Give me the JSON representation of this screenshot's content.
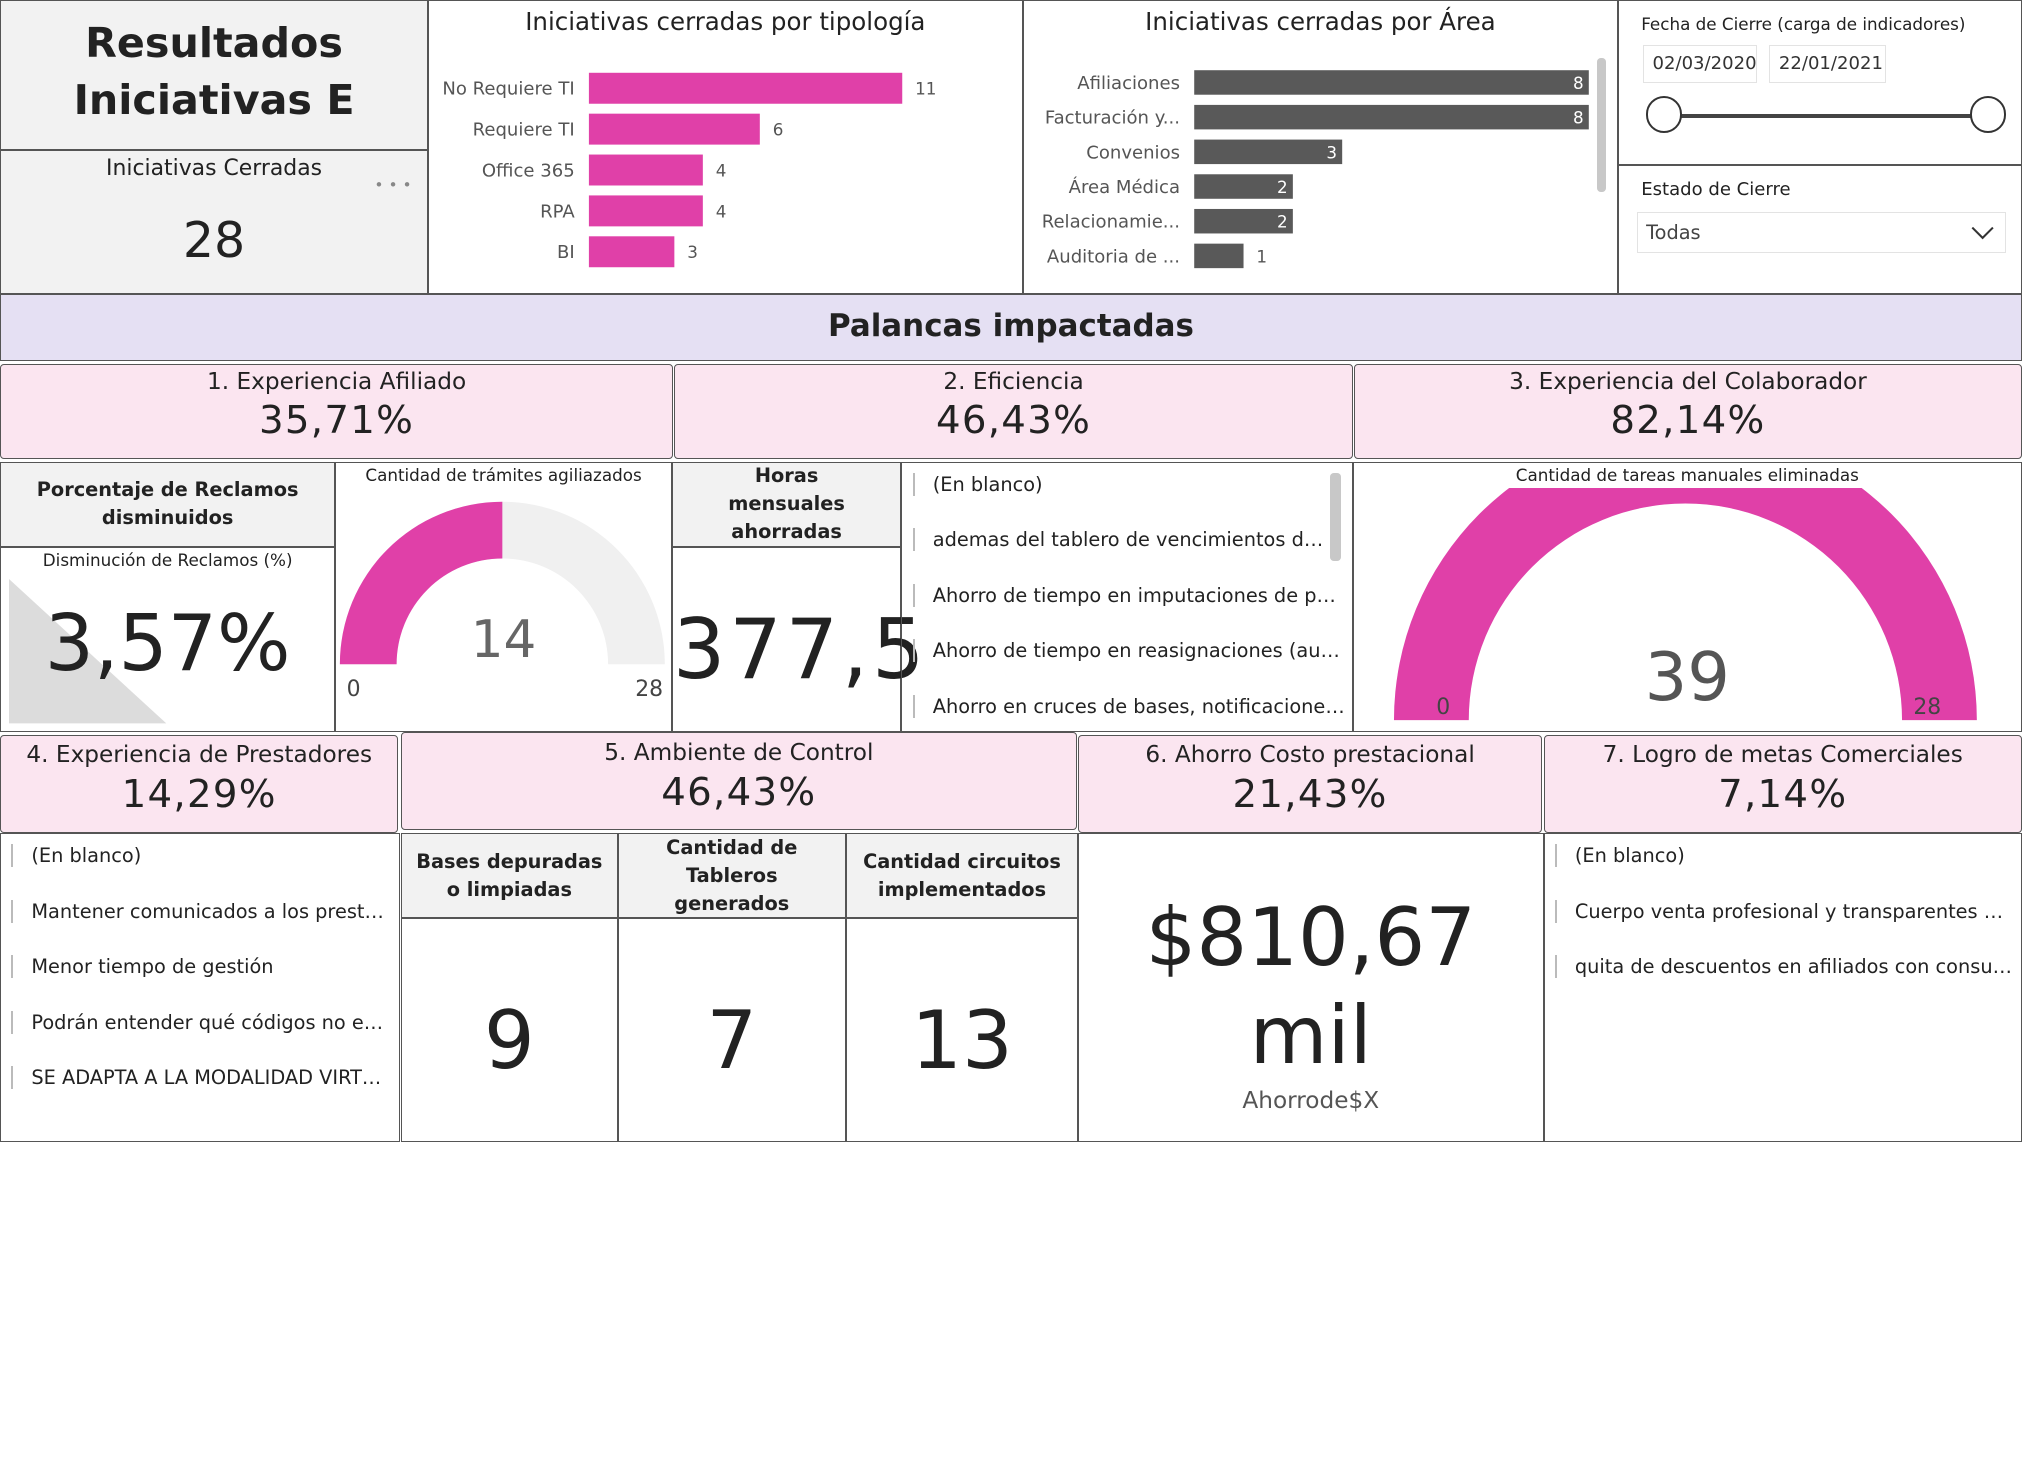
{
  "header": {
    "title_line1": "Resultados",
    "title_line2": "Iniciativas E"
  },
  "iniciativas_cerradas": {
    "label": "Iniciativas Cerradas",
    "value": "28",
    "more_glyph": "• • •"
  },
  "filters": {
    "fecha_label": "Fecha de Cierre (carga de indicadores)",
    "fecha_start": "02/03/2020",
    "fecha_end": "22/01/2021",
    "estado_label": "Estado de Cierre",
    "estado_value": "Todas"
  },
  "chart_data": [
    {
      "type": "bar",
      "orientation": "horizontal",
      "title": "Iniciativas cerradas por tipología",
      "categories": [
        "No Requiere TI",
        "Requiere TI",
        "Office 365",
        "RPA",
        "BI"
      ],
      "values": [
        11,
        6,
        4,
        4,
        3
      ],
      "color": "#e040a8"
    },
    {
      "type": "bar",
      "orientation": "horizontal",
      "title": "Iniciativas cerradas por Área",
      "categories": [
        "Afiliaciones",
        "Facturación y...",
        "Convenios",
        "Área Médica",
        "Relacionamie...",
        "Auditoria de ..."
      ],
      "values": [
        8,
        8,
        3,
        2,
        2,
        1
      ],
      "color": "#595959"
    }
  ],
  "palancas": {
    "title": "Palancas impactadas",
    "p1": {
      "label": "1. Experiencia Afiliado",
      "value": "35,71%"
    },
    "p2": {
      "label": "2. Eficiencia",
      "value": "46,43%"
    },
    "p3": {
      "label": "3. Experiencia del Colaborador",
      "value": "82,14%"
    },
    "p4": {
      "label": "4. Experiencia de Prestadores",
      "value": "14,29%"
    },
    "p5": {
      "label": "5. Ambiente de Control",
      "value": "46,43%"
    },
    "p6": {
      "label": "6. Ahorro Costo prestacional",
      "value": "21,43%"
    },
    "p7": {
      "label": "7. Logro de metas Comerciales",
      "value": "7,14%"
    }
  },
  "reclamos": {
    "header": "Porcentaje de Reclamos disminuidos",
    "sublabel": "Disminución de Reclamos (%)",
    "value": "3,57%"
  },
  "tramites_gauge": {
    "title": "Cantidad de trámites agiliazados",
    "value": 14,
    "min": 0,
    "max": 28,
    "value_label": "14",
    "min_label": "0",
    "max_label": "28",
    "color": "#e040a8"
  },
  "horas": {
    "header": "Horas mensuales ahorradas",
    "value": "377,5"
  },
  "eficiencia_list": [
    "(En blanco)",
    "ademas del tablero de vencimientos de cu...",
    "Ahorro de tiempo en imputaciones de pago...",
    "Ahorro de tiempo en reasignaciones (auto...",
    "Ahorro en cruces de bases, notificaciones i..."
  ],
  "tareas_gauge": {
    "title": "Cantidad de tareas manuales eliminadas",
    "value": 39,
    "min": 0,
    "max": 28,
    "value_label": "39",
    "min_label": "0",
    "max_label": "28",
    "color": "#e040a8"
  },
  "prestadores_list": [
    "(En blanco)",
    "Mantener comunicados a los prestad...",
    "Menor tiempo de gestión",
    "Podrán entender qué códigos no está...",
    "SE ADAPTA A LA MODALIDAD VIRTU..."
  ],
  "control": {
    "bases_header": "Bases depuradas o limpiadas",
    "bases_value": "9",
    "tableros_header": "Cantidad de Tableros generados",
    "tableros_value": "7",
    "circuitos_header": "Cantidad circuitos implementados",
    "circuitos_value": "13"
  },
  "ahorro": {
    "value_line1": "$810,67",
    "value_line2": "mil",
    "caption": "Ahorrode$X"
  },
  "comerciales_list": [
    "(En blanco)",
    "Cuerpo venta profesional y transparentes al ...",
    "quita de descuentos en afiliados con consumo..."
  ]
}
